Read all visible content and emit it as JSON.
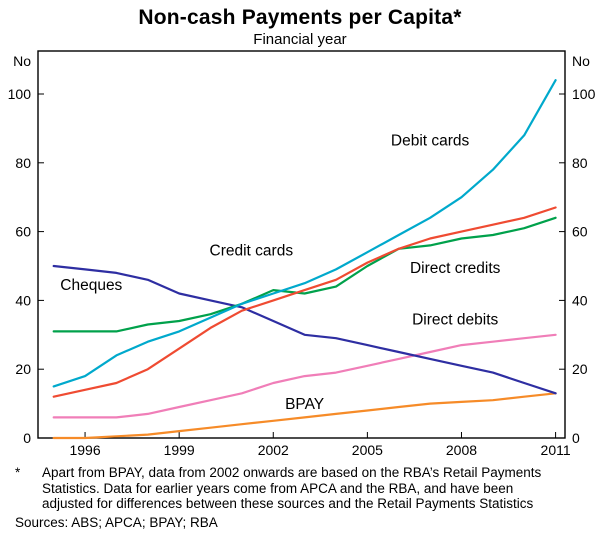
{
  "title": "Non-cash Payments per Capita*",
  "subtitle": "Financial year",
  "chart_data": {
    "type": "line",
    "title": "Non-cash Payments per Capita*",
    "subtitle": "Financial year",
    "ylabel_left": "No",
    "ylabel_right": "No",
    "ylim": [
      0,
      112.5
    ],
    "yticks": [
      0,
      20,
      40,
      60,
      80,
      100
    ],
    "xlim": [
      1994.5,
      2011.3
    ],
    "xticks": [
      1996,
      1999,
      2002,
      2005,
      2008,
      2011
    ],
    "grid": false,
    "legend": "inline-labels",
    "x": [
      1995,
      1996,
      1997,
      1998,
      1999,
      2000,
      2001,
      2002,
      2003,
      2004,
      2005,
      2006,
      2007,
      2008,
      2009,
      2010,
      2011
    ],
    "series": [
      {
        "name": "Debit cards",
        "color": "#00a9cc",
        "values": [
          15,
          18,
          24,
          28,
          31,
          35,
          39,
          42,
          45,
          49,
          54,
          59,
          64,
          70,
          78,
          88,
          104
        ],
        "label_pos": {
          "x": 2007.0,
          "y": 85
        }
      },
      {
        "name": "Credit cards",
        "color": "#ef4b32",
        "values": [
          12,
          14,
          16,
          20,
          26,
          32,
          37,
          40,
          43,
          46,
          51,
          55,
          58,
          60,
          62,
          64,
          67
        ],
        "label_pos": {
          "x": 2001.3,
          "y": 53
        }
      },
      {
        "name": "Direct credits",
        "color": "#00a14b",
        "values": [
          31,
          31,
          31,
          33,
          34,
          36,
          39,
          43,
          42,
          44,
          50,
          55,
          56,
          58,
          59,
          61,
          64
        ],
        "label_pos": {
          "x": 2007.8,
          "y": 48
        }
      },
      {
        "name": "Cheques",
        "color": "#2e2ea2",
        "values": [
          50,
          49,
          48,
          46,
          42,
          40,
          38,
          34,
          30,
          29,
          27,
          25,
          23,
          21,
          19,
          16,
          13
        ],
        "label_pos": {
          "x": 1996.2,
          "y": 43
        }
      },
      {
        "name": "Direct debits",
        "color": "#f07eb8",
        "values": [
          6,
          6,
          6,
          7,
          9,
          11,
          13,
          16,
          18,
          19,
          21,
          23,
          25,
          27,
          28,
          29,
          30
        ],
        "label_pos": {
          "x": 2007.8,
          "y": 33
        }
      },
      {
        "name": "BPAY",
        "color": "#f68b28",
        "values": [
          0,
          0,
          0.5,
          1,
          2,
          3,
          4,
          5,
          6,
          7,
          8,
          9,
          10,
          10.5,
          11,
          12,
          13
        ],
        "label_pos": {
          "x": 2003.0,
          "y": 8.5
        }
      }
    ]
  },
  "footnote": {
    "marker": "*",
    "text": "Apart from BPAY, data from 2002 onwards are based on the RBA’s Retail Payments Statistics. Data for earlier years come from APCA and the RBA, and have been adjusted for differences between these sources and the Retail Payments Statistics",
    "sources": "Sources: ABS; APCA; BPAY; RBA"
  }
}
